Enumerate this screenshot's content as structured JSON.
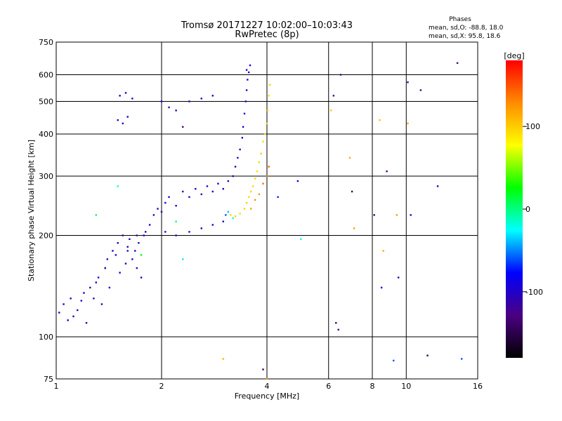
{
  "chart_data": {
    "type": "scatter",
    "title": "Tromsø 20171227 10:02:00–10:03:43",
    "subtitle": "RwPretec (8p)",
    "xlabel": "Frequency [MHz]",
    "ylabel": "Stationary phase Virtual Height [km]",
    "x_scale": "log",
    "y_scale": "log",
    "xlim": [
      1,
      16
    ],
    "ylim": [
      75,
      750
    ],
    "x_ticks": [
      1,
      2,
      4,
      6,
      8,
      10,
      16
    ],
    "y_ticks": [
      75,
      100,
      200,
      300,
      400,
      500,
      600,
      750
    ],
    "grid": true,
    "phase_box": {
      "title": "Phases",
      "line_o": "mean, sd,O: -88.8, 18.0",
      "line_x": "mean, sd,X:  95.8, 18.6"
    },
    "colorbar": {
      "label": "[deg]",
      "range": [
        -180,
        180
      ],
      "ticks": [
        100,
        0,
        -100
      ],
      "colors": [
        "#000000",
        "#4b0082",
        "#0000ff",
        "#00ffff",
        "#00ff00",
        "#ffff00",
        "#ff8c00",
        "#ff0000"
      ]
    },
    "series": [
      {
        "points": [
          [
            1.02,
            118,
            -100
          ],
          [
            1.05,
            125,
            -102
          ],
          [
            1.08,
            112,
            -98
          ],
          [
            1.1,
            130,
            -105
          ],
          [
            1.12,
            115,
            -101
          ],
          [
            1.15,
            120,
            -97
          ],
          [
            1.18,
            128,
            -103
          ],
          [
            1.2,
            135,
            -100
          ],
          [
            1.22,
            110,
            -104
          ],
          [
            1.25,
            140,
            -99
          ],
          [
            1.28,
            130,
            -102
          ],
          [
            1.3,
            145,
            -98
          ],
          [
            1.32,
            150,
            -101
          ],
          [
            1.35,
            125,
            -105
          ],
          [
            1.38,
            160,
            -97
          ],
          [
            1.4,
            170,
            -103
          ],
          [
            1.42,
            140,
            -100
          ],
          [
            1.45,
            180,
            -99
          ],
          [
            1.48,
            175,
            -102
          ],
          [
            1.5,
            190,
            -98
          ],
          [
            1.52,
            155,
            -101
          ],
          [
            1.55,
            200,
            -100
          ],
          [
            1.58,
            165,
            -104
          ],
          [
            1.6,
            185,
            -99
          ],
          [
            1.62,
            195,
            -102
          ],
          [
            1.65,
            170,
            -98
          ],
          [
            1.68,
            180,
            -101
          ],
          [
            1.7,
            160,
            -100
          ],
          [
            1.72,
            190,
            -103
          ],
          [
            1.75,
            150,
            -99
          ],
          [
            1.78,
            200,
            -100
          ],
          [
            1.8,
            205,
            -102
          ],
          [
            1.85,
            215,
            -98
          ],
          [
            1.9,
            230,
            -101
          ],
          [
            1.95,
            240,
            -100
          ],
          [
            2.0,
            235,
            -103
          ],
          [
            2.05,
            250,
            -99
          ],
          [
            2.1,
            260,
            -102
          ],
          [
            2.2,
            245,
            -100
          ],
          [
            2.3,
            270,
            -98
          ],
          [
            2.4,
            260,
            -101
          ],
          [
            2.5,
            275,
            -100
          ],
          [
            2.6,
            265,
            -103
          ],
          [
            2.7,
            280,
            -99
          ],
          [
            2.8,
            270,
            -102
          ],
          [
            2.9,
            285,
            -100
          ],
          [
            3.0,
            275,
            -98
          ],
          [
            3.1,
            290,
            -101
          ],
          [
            3.2,
            300,
            -100
          ],
          [
            3.25,
            320,
            -103
          ],
          [
            3.3,
            340,
            -99
          ],
          [
            3.35,
            360,
            -102
          ],
          [
            3.4,
            390,
            -100
          ],
          [
            3.42,
            420,
            -98
          ],
          [
            3.45,
            460,
            -101
          ],
          [
            3.48,
            500,
            -100
          ],
          [
            3.5,
            540,
            -103
          ],
          [
            3.52,
            580,
            -99
          ],
          [
            3.55,
            610,
            -102
          ],
          [
            3.58,
            640,
            -100
          ],
          [
            1.5,
            440,
            -100
          ],
          [
            1.55,
            430,
            -102
          ],
          [
            1.6,
            450,
            -98
          ],
          [
            1.52,
            520,
            -101
          ],
          [
            1.58,
            530,
            -100
          ],
          [
            1.65,
            510,
            -103
          ],
          [
            2.0,
            500,
            -99
          ],
          [
            2.1,
            480,
            -102
          ],
          [
            2.2,
            470,
            -100
          ],
          [
            2.4,
            500,
            -98
          ],
          [
            2.6,
            510,
            -101
          ],
          [
            2.8,
            520,
            -100
          ],
          [
            2.05,
            205,
            -103
          ],
          [
            2.2,
            200,
            -99
          ],
          [
            2.4,
            205,
            -102
          ],
          [
            2.6,
            210,
            -100
          ],
          [
            2.8,
            215,
            -98
          ],
          [
            3.0,
            220,
            -101
          ],
          [
            3.05,
            230,
            -60
          ],
          [
            3.1,
            235,
            -40
          ],
          [
            3.2,
            225,
            -20
          ],
          [
            3.15,
            230,
            95
          ],
          [
            3.25,
            228,
            98
          ],
          [
            3.35,
            232,
            92
          ],
          [
            3.45,
            240,
            96
          ],
          [
            3.5,
            250,
            99
          ],
          [
            3.55,
            260,
            94
          ],
          [
            3.6,
            270,
            97
          ],
          [
            3.65,
            280,
            95
          ],
          [
            3.7,
            295,
            98
          ],
          [
            3.75,
            310,
            93
          ],
          [
            3.8,
            330,
            96
          ],
          [
            3.85,
            350,
            99
          ],
          [
            3.9,
            380,
            94
          ],
          [
            3.95,
            400,
            97
          ],
          [
            4.0,
            430,
            95
          ],
          [
            4.02,
            470,
            98
          ],
          [
            4.05,
            520,
            92
          ],
          [
            4.08,
            560,
            96
          ],
          [
            3.6,
            240,
            120
          ],
          [
            3.7,
            255,
            130
          ],
          [
            3.8,
            265,
            125
          ],
          [
            3.9,
            285,
            140
          ],
          [
            4.0,
            300,
            135
          ],
          [
            4.05,
            320,
            145
          ],
          [
            1.38,
            160,
            -130
          ],
          [
            1.6,
            180,
            -120
          ],
          [
            1.7,
            200,
            -125
          ],
          [
            2.3,
            420,
            -130
          ],
          [
            3.5,
            620,
            -90
          ],
          [
            6.2,
            520,
            -130
          ],
          [
            6.5,
            600,
            -125
          ],
          [
            7.0,
            270,
            -140
          ],
          [
            8.1,
            230,
            -135
          ],
          [
            8.8,
            310,
            -130
          ],
          [
            10.1,
            570,
            -120
          ],
          [
            11.0,
            540,
            -125
          ],
          [
            12.3,
            280,
            -90
          ],
          [
            14.0,
            650,
            -130
          ],
          [
            9.5,
            150,
            -110
          ],
          [
            10.3,
            230,
            -100
          ],
          [
            6.3,
            110,
            -135
          ],
          [
            6.4,
            105,
            -130
          ],
          [
            8.5,
            140,
            -80
          ],
          [
            9.2,
            85,
            -60
          ],
          [
            11.5,
            88,
            -150
          ],
          [
            14.4,
            86,
            -60
          ],
          [
            1.75,
            175,
            20
          ],
          [
            2.3,
            170,
            -30
          ],
          [
            1.3,
            230,
            10
          ],
          [
            1.5,
            280,
            -20
          ],
          [
            2.2,
            220,
            0
          ],
          [
            5.0,
            195,
            -20
          ],
          [
            4.3,
            260,
            -70
          ],
          [
            4.9,
            290,
            -80
          ],
          [
            8.6,
            180,
            115
          ],
          [
            10.1,
            430,
            120
          ],
          [
            9.4,
            230,
            125
          ],
          [
            8.4,
            440,
            105
          ],
          [
            6.9,
            340,
            115
          ],
          [
            7.1,
            210,
            120
          ],
          [
            6.1,
            470,
            100
          ],
          [
            3.0,
            86,
            110
          ],
          [
            3.9,
            80,
            -140
          ],
          [
            4.0,
            75,
            120
          ]
        ]
      }
    ]
  }
}
